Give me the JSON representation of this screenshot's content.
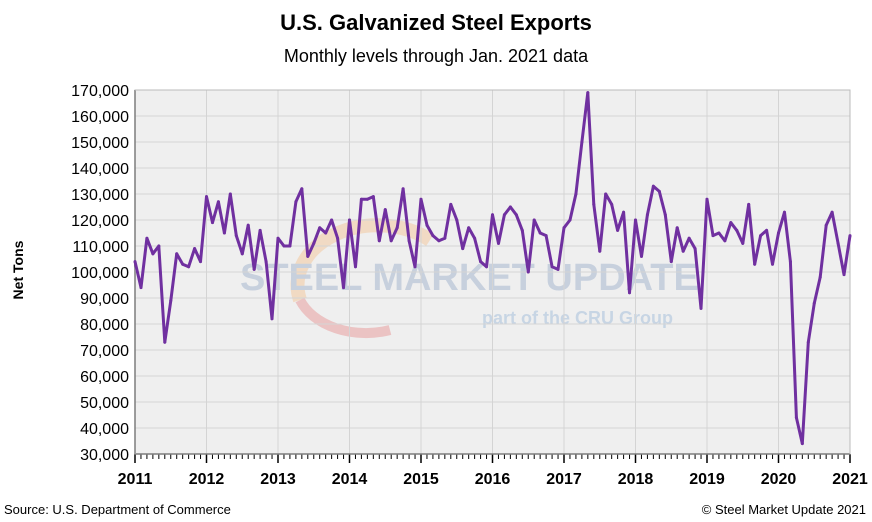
{
  "chart_data": {
    "type": "line",
    "title": "U.S. Galvanized Steel Exports",
    "subtitle": "Monthly levels through Jan. 2021 data",
    "ylabel": "Net Tons",
    "xlabel": "",
    "ylim": [
      30000,
      170000
    ],
    "yticks": [
      30000,
      40000,
      50000,
      60000,
      70000,
      80000,
      90000,
      100000,
      110000,
      120000,
      130000,
      140000,
      150000,
      160000,
      170000
    ],
    "ytick_labels": [
      "30,000",
      "40,000",
      "50,000",
      "60,000",
      "70,000",
      "80,000",
      "90,000",
      "100,000",
      "110,000",
      "120,000",
      "130,000",
      "140,000",
      "150,000",
      "160,000",
      "170,000"
    ],
    "xtick_labels": [
      "2011",
      "2012",
      "2013",
      "2014",
      "2015",
      "2016",
      "2017",
      "2018",
      "2019",
      "2020",
      "2021"
    ],
    "x_start": "2011-01",
    "x_end": "2021-01",
    "grid": true,
    "line_color": "#7030A0",
    "values": [
      104000,
      94000,
      113000,
      107000,
      110000,
      73000,
      89000,
      107000,
      103000,
      102000,
      109000,
      104000,
      129000,
      119000,
      127000,
      115000,
      130000,
      114000,
      107000,
      118000,
      101000,
      116000,
      104000,
      82000,
      113000,
      110000,
      110000,
      127000,
      132000,
      106000,
      111000,
      117000,
      115000,
      120000,
      113000,
      94000,
      120000,
      102000,
      128000,
      128000,
      129000,
      112000,
      124000,
      112000,
      117000,
      132000,
      112000,
      102000,
      128000,
      118000,
      114000,
      112000,
      113000,
      126000,
      120000,
      109000,
      117000,
      113000,
      104000,
      102000,
      122000,
      111000,
      122000,
      125000,
      122000,
      116000,
      100000,
      120000,
      115000,
      114000,
      102000,
      101000,
      117000,
      120000,
      130000,
      150000,
      169000,
      126000,
      108000,
      130000,
      126000,
      116000,
      123000,
      92000,
      120000,
      106000,
      122000,
      133000,
      131000,
      122000,
      104000,
      117000,
      108000,
      113000,
      109000,
      86000,
      128000,
      114000,
      115000,
      112000,
      119000,
      116000,
      111000,
      126000,
      103000,
      114000,
      116000,
      103000,
      115000,
      123000,
      104000,
      44000,
      34000,
      73000,
      88000,
      98000,
      118000,
      123000,
      111000,
      99000,
      114000
    ]
  },
  "source": "Source: U.S. Department of Commerce",
  "copyright": "© Steel Market Update 2021",
  "watermark": {
    "line1": "STEEL MARKET UPDATE",
    "line2": "part of the CRU Group"
  }
}
